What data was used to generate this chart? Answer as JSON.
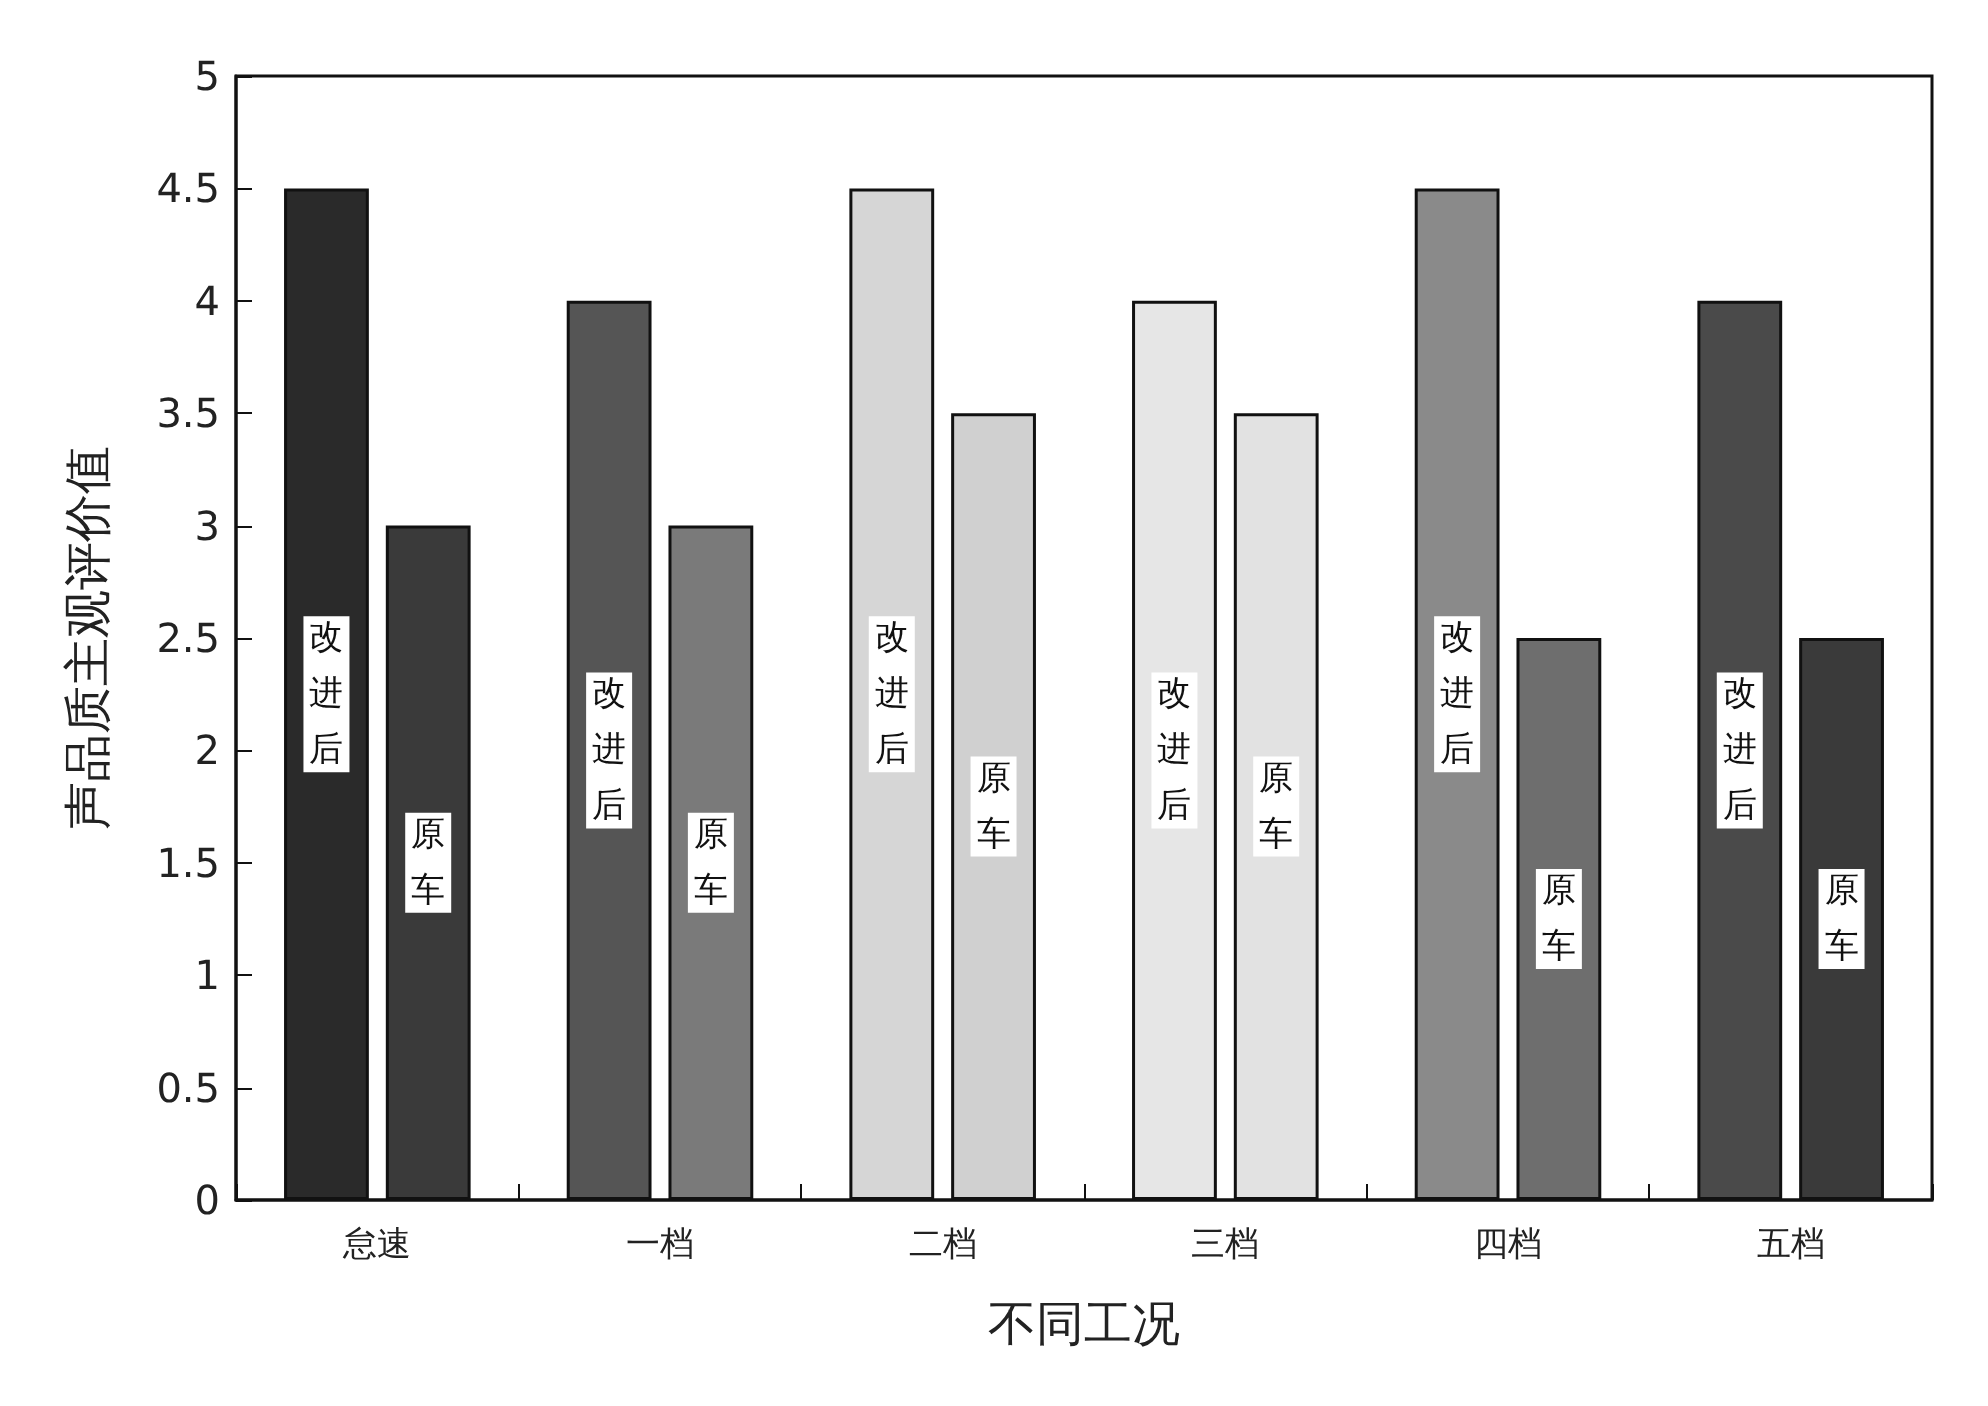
{
  "chart_data": {
    "type": "bar",
    "xlabel": "不同工况",
    "ylabel": "声品质主观评价值",
    "categories": [
      "怠速",
      "一档",
      "二档",
      "三档",
      "四档",
      "五档"
    ],
    "series": [
      {
        "name": "改进后",
        "colors": [
          "#2a2a2a",
          "#555555",
          "#d6d6d6",
          "#e6e6e6",
          "#8a8a8a",
          "#4a4a4a"
        ],
        "values": [
          4.5,
          4,
          4.5,
          4,
          4.5,
          4
        ]
      },
      {
        "name": "原车",
        "colors": [
          "#3a3a3a",
          "#7a7a7a",
          "#d0d0d0",
          "#e2e2e2",
          "#6e6e6e",
          "#3a3a3a"
        ],
        "values": [
          3,
          3,
          3.5,
          3.5,
          2.5,
          2.5
        ]
      }
    ],
    "ylim": [
      0,
      5
    ],
    "yticks": [
      0,
      0.5,
      1,
      1.5,
      2,
      2.5,
      3,
      3.5,
      4,
      4.5,
      5
    ],
    "grid": false,
    "legend": false
  }
}
